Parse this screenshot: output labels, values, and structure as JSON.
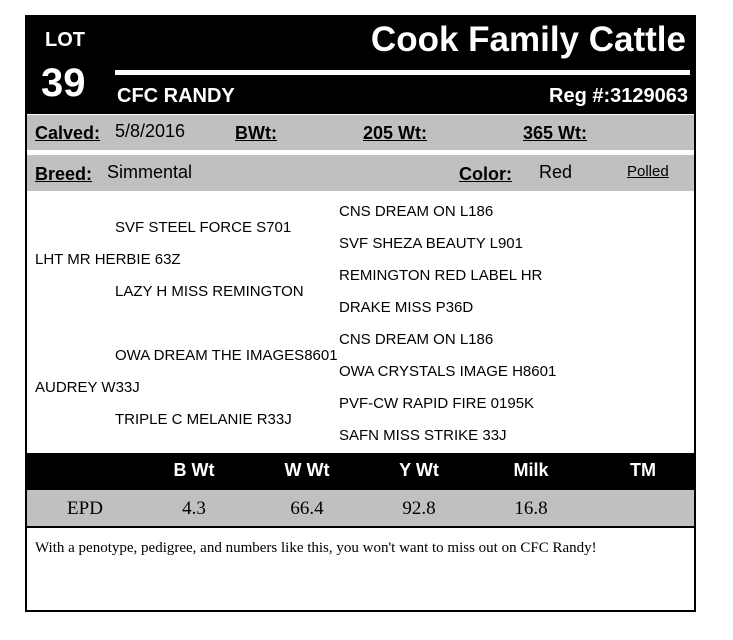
{
  "header": {
    "lot_label": "LOT",
    "lot_number": "39",
    "farm": "Cook Family Cattle",
    "animal_name": "CFC RANDY",
    "reg": "Reg #:3129063"
  },
  "info": {
    "calved_label": "Calved:",
    "calved": "5/8/2016",
    "bwt_label": "BWt:",
    "w205_label": "205 Wt:",
    "w365_label": "365 Wt:",
    "breed_label": "Breed:",
    "breed": "Simmental",
    "color_label": "Color:",
    "color": "Red",
    "polled": "Polled"
  },
  "pedigree": {
    "sire": "LHT MR HERBIE 63Z",
    "sire_sire": "SVF STEEL FORCE S701",
    "sire_dam": "LAZY H MISS REMINGTON",
    "ss_sire": "CNS DREAM ON L186",
    "ss_dam": "SVF SHEZA BEAUTY L901",
    "sd_sire": "REMINGTON RED LABEL HR",
    "sd_dam": "DRAKE MISS P36D",
    "dam": "AUDREY W33J",
    "dam_sire": "OWA DREAM THE IMAGES8601",
    "dam_dam": "TRIPLE C MELANIE R33J",
    "ds_sire": "CNS DREAM ON L186",
    "ds_dam": "OWA CRYSTALS IMAGE H8601",
    "dd_sire": "PVF-CW RAPID FIRE 0195K",
    "dd_dam": "SAFN MISS STRIKE 33J"
  },
  "epd": {
    "headers": [
      "B Wt",
      "W Wt",
      "Y Wt",
      "Milk",
      "TM"
    ],
    "row_label": "EPD",
    "values": [
      "4.3",
      "66.4",
      "92.8",
      "16.8",
      ""
    ]
  },
  "comment": "With a penotype, pedigree, and numbers like this, you won't want to miss out on CFC Randy!"
}
